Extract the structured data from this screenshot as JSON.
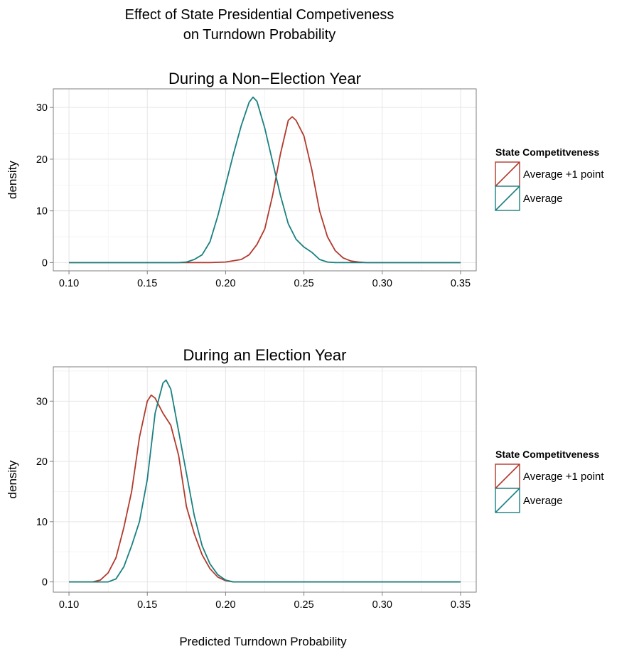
{
  "title_lines": [
    "Effect of State Presidential Competiveness",
    "on Turndown Probability"
  ],
  "colors": {
    "average_plus_1": "#B2392C",
    "average": "#1A8080"
  },
  "chart_data": [
    {
      "type": "line",
      "title": "During a Non−Election Year",
      "ylabel": "density",
      "xlim": [
        0.1,
        0.35
      ],
      "ylim": [
        0,
        32
      ],
      "x_ticks": [
        "0.10",
        "0.15",
        "0.20",
        "0.25",
        "0.30",
        "0.35"
      ],
      "y_ticks": [
        "0",
        "10",
        "20",
        "30"
      ],
      "grid": true,
      "legend": {
        "title": "State Competitveness",
        "position": "right",
        "entries": [
          "Average +1 point",
          "Average"
        ]
      },
      "series": [
        {
          "name": "Average +1 point",
          "color": "#B2392C",
          "points": [
            [
              0.1,
              0
            ],
            [
              0.19,
              0
            ],
            [
              0.2,
              0.1
            ],
            [
              0.21,
              0.6
            ],
            [
              0.215,
              1.5
            ],
            [
              0.22,
              3.5
            ],
            [
              0.225,
              6.5
            ],
            [
              0.23,
              13
            ],
            [
              0.235,
              21
            ],
            [
              0.24,
              27.5
            ],
            [
              0.2425,
              28.2
            ],
            [
              0.245,
              27.5
            ],
            [
              0.25,
              24.5
            ],
            [
              0.255,
              18
            ],
            [
              0.26,
              10
            ],
            [
              0.265,
              5
            ],
            [
              0.27,
              2.3
            ],
            [
              0.275,
              0.9
            ],
            [
              0.28,
              0.3
            ],
            [
              0.285,
              0.1
            ],
            [
              0.29,
              0
            ],
            [
              0.35,
              0
            ]
          ]
        },
        {
          "name": "Average",
          "color": "#1A8080",
          "points": [
            [
              0.1,
              0
            ],
            [
              0.17,
              0
            ],
            [
              0.175,
              0.1
            ],
            [
              0.18,
              0.6
            ],
            [
              0.185,
              1.5
            ],
            [
              0.19,
              4
            ],
            [
              0.195,
              9
            ],
            [
              0.2,
              15
            ],
            [
              0.205,
              21
            ],
            [
              0.21,
              26.5
            ],
            [
              0.215,
              31
            ],
            [
              0.2175,
              32
            ],
            [
              0.22,
              31.2
            ],
            [
              0.225,
              26
            ],
            [
              0.23,
              19.5
            ],
            [
              0.235,
              13
            ],
            [
              0.24,
              7.5
            ],
            [
              0.245,
              4.5
            ],
            [
              0.25,
              3
            ],
            [
              0.255,
              2
            ],
            [
              0.26,
              0.6
            ],
            [
              0.265,
              0.1
            ],
            [
              0.27,
              0
            ],
            [
              0.35,
              0
            ]
          ]
        }
      ]
    },
    {
      "type": "line",
      "title": "During an Election Year",
      "ylabel": "density",
      "xlim": [
        0.1,
        0.35
      ],
      "ylim": [
        0,
        34
      ],
      "x_ticks": [
        "0.10",
        "0.15",
        "0.20",
        "0.25",
        "0.30",
        "0.35"
      ],
      "y_ticks": [
        "0",
        "10",
        "20",
        "30"
      ],
      "grid": true,
      "xlabel": "Predicted Turndown Probability",
      "legend": {
        "title": "State Competitveness",
        "position": "right",
        "entries": [
          "Average +1 point",
          "Average"
        ]
      },
      "series": [
        {
          "name": "Average +1 point",
          "color": "#B2392C",
          "points": [
            [
              0.1,
              0
            ],
            [
              0.115,
              0
            ],
            [
              0.12,
              0.3
            ],
            [
              0.125,
              1.5
            ],
            [
              0.13,
              4
            ],
            [
              0.135,
              9
            ],
            [
              0.14,
              15
            ],
            [
              0.145,
              24
            ],
            [
              0.15,
              30
            ],
            [
              0.1525,
              31
            ],
            [
              0.155,
              30.5
            ],
            [
              0.16,
              28
            ],
            [
              0.165,
              26
            ],
            [
              0.17,
              21
            ],
            [
              0.175,
              12.5
            ],
            [
              0.18,
              8
            ],
            [
              0.185,
              4.5
            ],
            [
              0.19,
              2.2
            ],
            [
              0.195,
              0.8
            ],
            [
              0.2,
              0.2
            ],
            [
              0.205,
              0
            ],
            [
              0.35,
              0
            ]
          ]
        },
        {
          "name": "Average",
          "color": "#1A8080",
          "points": [
            [
              0.1,
              0
            ],
            [
              0.125,
              0
            ],
            [
              0.13,
              0.5
            ],
            [
              0.135,
              2.5
            ],
            [
              0.14,
              6
            ],
            [
              0.145,
              10
            ],
            [
              0.15,
              17
            ],
            [
              0.155,
              28
            ],
            [
              0.16,
              33
            ],
            [
              0.162,
              33.5
            ],
            [
              0.165,
              32
            ],
            [
              0.17,
              25
            ],
            [
              0.175,
              18
            ],
            [
              0.18,
              11
            ],
            [
              0.185,
              6
            ],
            [
              0.19,
              3
            ],
            [
              0.195,
              1.2
            ],
            [
              0.2,
              0.3
            ],
            [
              0.205,
              0
            ],
            [
              0.35,
              0
            ]
          ]
        }
      ]
    }
  ]
}
